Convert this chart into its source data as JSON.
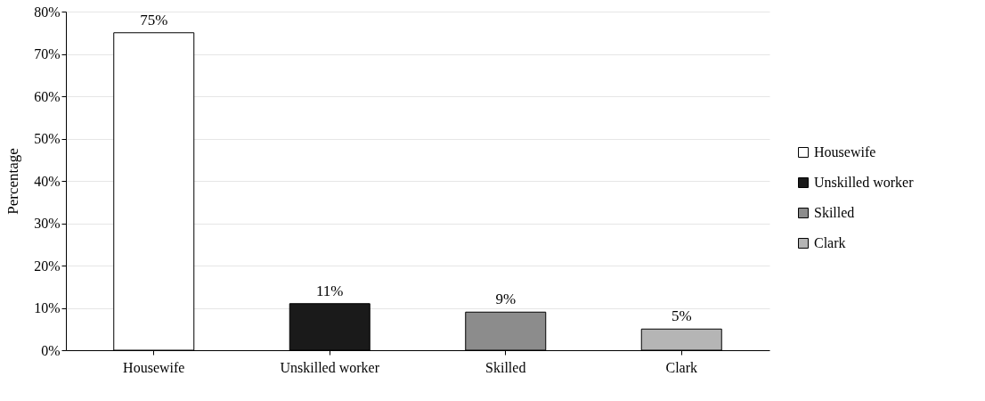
{
  "chart_data": {
    "type": "bar",
    "ylabel": "Percentage",
    "categories": [
      "Housewife",
      "Unskilled worker",
      "Skilled",
      "Clark"
    ],
    "series": [
      {
        "name": "Housewife",
        "color": "#ffffff",
        "values": [
          75,
          null,
          null,
          null
        ],
        "value_labels": [
          "75%",
          null,
          null,
          null
        ]
      },
      {
        "name": "Unskilled worker",
        "color": "#1a1a1a",
        "values": [
          null,
          11,
          null,
          null
        ],
        "value_labels": [
          null,
          "11%",
          null,
          null
        ]
      },
      {
        "name": "Skilled",
        "color": "#8c8c8c",
        "values": [
          null,
          null,
          9,
          null
        ],
        "value_labels": [
          null,
          null,
          "9%",
          null
        ]
      },
      {
        "name": "Clark",
        "color": "#b5b5b5",
        "values": [
          null,
          null,
          null,
          5
        ],
        "value_labels": [
          null,
          null,
          null,
          "5%"
        ]
      }
    ],
    "ylim": [
      0,
      80
    ],
    "yticks": [
      {
        "value": 0,
        "label": "0%"
      },
      {
        "value": 10,
        "label": "10%"
      },
      {
        "value": 20,
        "label": "20%"
      },
      {
        "value": 30,
        "label": "30%"
      },
      {
        "value": 40,
        "label": "40%"
      },
      {
        "value": 50,
        "label": "50%"
      },
      {
        "value": 60,
        "label": "60%"
      },
      {
        "value": 70,
        "label": "70%"
      },
      {
        "value": 80,
        "label": "80%"
      }
    ],
    "grid": "y",
    "legend": "right"
  }
}
